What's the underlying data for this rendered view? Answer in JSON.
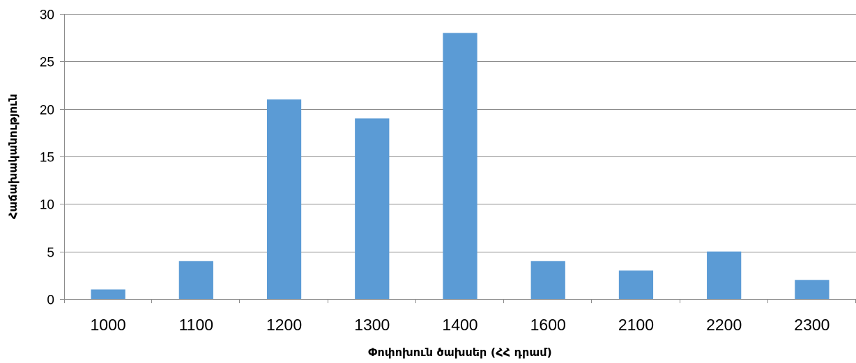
{
  "chart_data": {
    "type": "bar",
    "categories": [
      "1000",
      "1100",
      "1200",
      "1300",
      "1400",
      "1600",
      "2100",
      "2200",
      "2300"
    ],
    "values": [
      1,
      4,
      21,
      19,
      28,
      4,
      3,
      5,
      2
    ],
    "title": "",
    "xlabel": "Փոփոխուն ծախսեր (ՀՀ դրամ)",
    "ylabel": "Հաճախականություն",
    "ylim": [
      0,
      30
    ],
    "yticks": [
      "0",
      "5",
      "10",
      "15",
      "20",
      "25",
      "30"
    ],
    "grid": true,
    "legend": "none",
    "bar_color": "#5b9bd5"
  }
}
